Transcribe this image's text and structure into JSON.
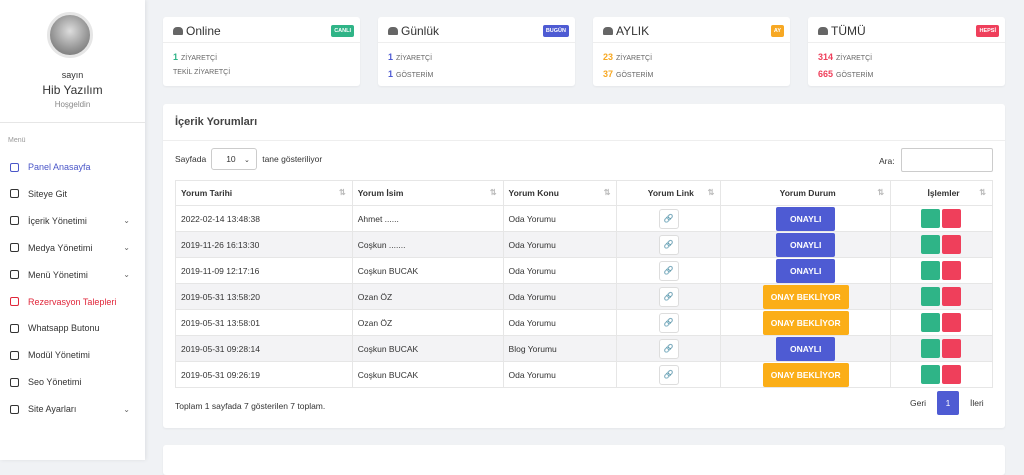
{
  "sidebar": {
    "greeting": "sayın",
    "name": "Hib Yazılım",
    "welcome": "Hoşgeldin",
    "menu_label": "Menü",
    "items": [
      {
        "label": "Panel Anasayfa",
        "color": "#4a56c8",
        "submenu": false
      },
      {
        "label": "Siteye Git",
        "color": "#333333",
        "submenu": false
      },
      {
        "label": "İçerik Yönetimi",
        "color": "#333333",
        "submenu": true
      },
      {
        "label": "Medya Yönetimi",
        "color": "#333333",
        "submenu": true
      },
      {
        "label": "Menü Yönetimi",
        "color": "#333333",
        "submenu": true
      },
      {
        "label": "Rezervasyon Talepleri",
        "color": "#e0263a",
        "submenu": false
      },
      {
        "label": "Whatsapp Butonu",
        "color": "#333333",
        "submenu": false
      },
      {
        "label": "Modül Yönetimi",
        "color": "#333333",
        "submenu": false
      },
      {
        "label": "Seo Yönetimi",
        "color": "#333333",
        "submenu": false
      },
      {
        "label": "Site Ayarları",
        "color": "#333333",
        "submenu": true
      }
    ]
  },
  "stats": [
    {
      "title": "Online",
      "badge": "CANLI",
      "color": "#2fb487",
      "lines": [
        {
          "value": 1,
          "label": "ZİYARETÇİ"
        },
        {
          "label": "TEKİL ZİYARETÇİ"
        }
      ]
    },
    {
      "title": "Günlük",
      "badge": "BUGÜN",
      "color": "#4e5bd3",
      "lines": [
        {
          "value": 1,
          "label": "ZİYARETÇİ"
        },
        {
          "value": 1,
          "label": "GÖSTERİM"
        }
      ]
    },
    {
      "title": "AYLIK",
      "badge": "AY",
      "color": "#f7a823",
      "lines": [
        {
          "value": 23,
          "label": "ZİYARETÇİ"
        },
        {
          "value": 37,
          "label": "GÖSTERİM"
        }
      ]
    },
    {
      "title": "TÜMÜ",
      "badge": "HEPSİ",
      "color": "#ef3f5b",
      "lines": [
        {
          "value": 314,
          "label": "ZİYARETÇİ"
        },
        {
          "value": 665,
          "label": "GÖSTERİM"
        }
      ]
    }
  ],
  "table": {
    "title": "İçerik Yorumları",
    "length_prefix": "Sayfada",
    "length": 10,
    "length_suffix": "tane gösteriliyor",
    "search_label": "Ara:",
    "headers": [
      "Yorum Tarihi",
      "Yorum İsim",
      "Yorum Konu",
      "Yorum Link",
      "Yorum Durum",
      "İşlemler"
    ],
    "rows": [
      {
        "date": "2022-02-14 13:48:38",
        "name": "Ahmet ......",
        "topic": "Oda Yorumu",
        "status": {
          "text": "ONAYLI",
          "color": "#4e5bd3"
        }
      },
      {
        "date": "2019-11-26 16:13:30",
        "name": "Coşkun .......",
        "topic": "Oda Yorumu",
        "status": {
          "text": "ONAYLI",
          "color": "#4e5bd3"
        }
      },
      {
        "date": "2019-11-09 12:17:16",
        "name": "Coşkun BUCAK",
        "topic": "Oda Yorumu",
        "status": {
          "text": "ONAYLI",
          "color": "#4e5bd3"
        }
      },
      {
        "date": "2019-05-31 13:58:20",
        "name": "Ozan ÖZ",
        "topic": "Oda Yorumu",
        "status": {
          "text": "ONAY BEKLİYOR",
          "color": "#fbae17"
        }
      },
      {
        "date": "2019-05-31 13:58:01",
        "name": "Ozan ÖZ",
        "topic": "Oda Yorumu",
        "status": {
          "text": "ONAY BEKLİYOR",
          "color": "#fbae17"
        }
      },
      {
        "date": "2019-05-31 09:28:14",
        "name": "Coşkun BUCAK",
        "topic": "Blog Yorumu",
        "status": {
          "text": "ONAYLI",
          "color": "#4e5bd3"
        }
      },
      {
        "date": "2019-05-31 09:26:19",
        "name": "Coşkun BUCAK",
        "topic": "Oda Yorumu",
        "status": {
          "text": "ONAY BEKLİYOR",
          "color": "#fbae17"
        }
      }
    ],
    "info": "Toplam 1 sayfada 7 gösterilen 7 toplam.",
    "prev": "Geri",
    "page": 1,
    "next": "İleri"
  }
}
